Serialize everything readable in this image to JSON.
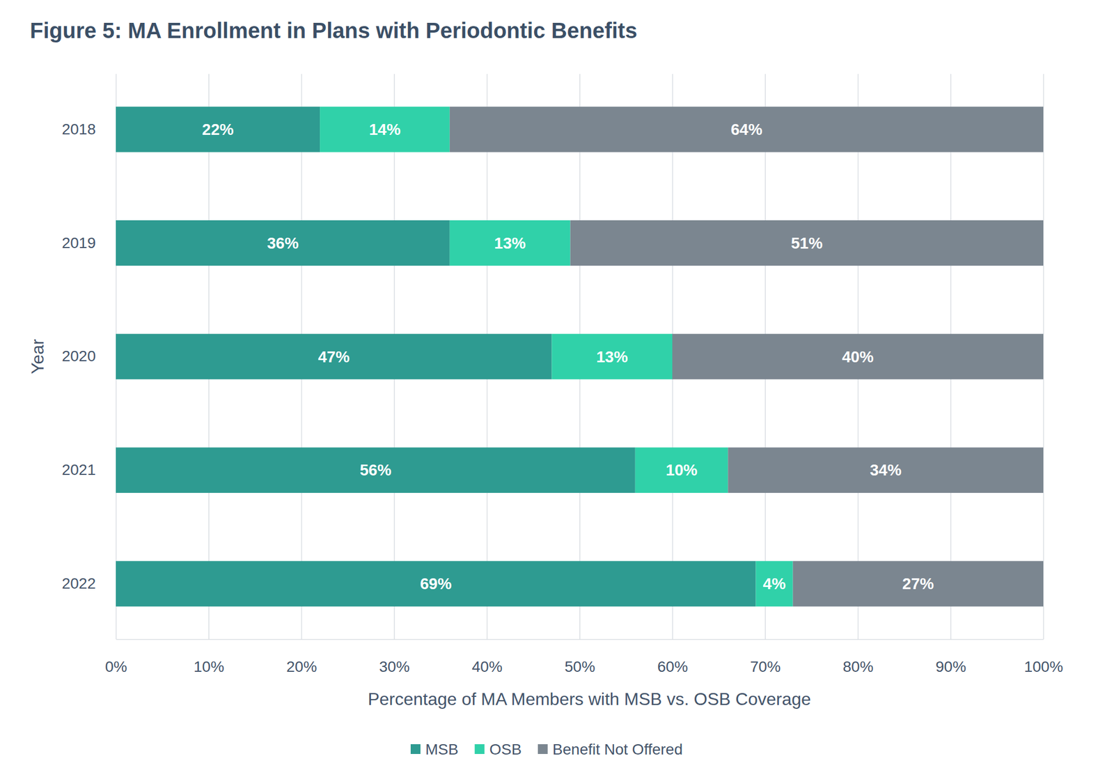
{
  "chart_data": {
    "type": "bar",
    "title": "Figure 5: MA Enrollment in Plans with Periodontic Benefits",
    "x_label": "Percentage of MA Members with MSB vs. OSB Coverage",
    "y_label": "Year",
    "orientation": "horizontal",
    "stacked": true,
    "data_labels": true,
    "grid": true,
    "legend": "bottom",
    "categories": [
      "2018",
      "2019",
      "2020",
      "2021",
      "2022"
    ],
    "series": [
      {
        "name": "MSB",
        "color": "#2e9b91",
        "values": [
          22,
          36,
          47,
          56,
          69
        ],
        "value_labels": [
          "22%",
          "36%",
          "47%",
          "56%",
          "69%"
        ]
      },
      {
        "name": "OSB",
        "color": "#30d1a9",
        "values": [
          14,
          13,
          13,
          10,
          4
        ],
        "value_labels": [
          "14%",
          "13%",
          "13%",
          "10%",
          "4%"
        ]
      },
      {
        "name": "Benefit Not Offered",
        "color": "#7b8690",
        "values": [
          64,
          51,
          40,
          34,
          27
        ],
        "value_labels": [
          "64%",
          "51%",
          "40%",
          "34%",
          "27%"
        ]
      }
    ],
    "xlim": [
      0,
      100
    ],
    "xticks": [
      {
        "value": 0,
        "label": "0%"
      },
      {
        "value": 10,
        "label": "10%"
      },
      {
        "value": 20,
        "label": "20%"
      },
      {
        "value": 30,
        "label": "30%"
      },
      {
        "value": 40,
        "label": "40%"
      },
      {
        "value": 50,
        "label": "50%"
      },
      {
        "value": 60,
        "label": "60%"
      },
      {
        "value": 70,
        "label": "70%"
      },
      {
        "value": 80,
        "label": "80%"
      },
      {
        "value": 90,
        "label": "90%"
      },
      {
        "value": 100,
        "label": "100%"
      }
    ]
  }
}
